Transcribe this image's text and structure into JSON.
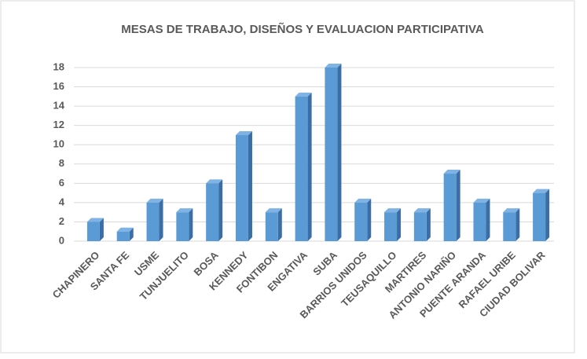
{
  "chart_data": {
    "type": "bar",
    "title": "MESAS DE TRABAJO, DISEÑOS Y EVALUACION PARTICIPATIVA",
    "categories": [
      "CHAPINERO",
      "SANTA FE",
      "USME",
      "TUNJUELITO",
      "BOSA",
      "KENNEDY",
      "FONTIBON",
      "ENGATIVA",
      "SUBA",
      "BARRIOS UNIDOS",
      "TEUSAQUILLO",
      "MARTIRES",
      "ANTONIO NARIÑO",
      "PUENTE ARANDA",
      "RAFAEL URIBE",
      "CIUDAD BOLIVAR"
    ],
    "values": [
      2,
      1,
      4,
      3,
      6,
      11,
      3,
      15,
      18,
      4,
      3,
      3,
      7,
      4,
      3,
      5
    ],
    "color": "#5b9bd5",
    "ylim": [
      0,
      18
    ],
    "yticks": [
      0,
      2,
      4,
      6,
      8,
      10,
      12,
      14,
      16,
      18
    ],
    "grid": true
  }
}
